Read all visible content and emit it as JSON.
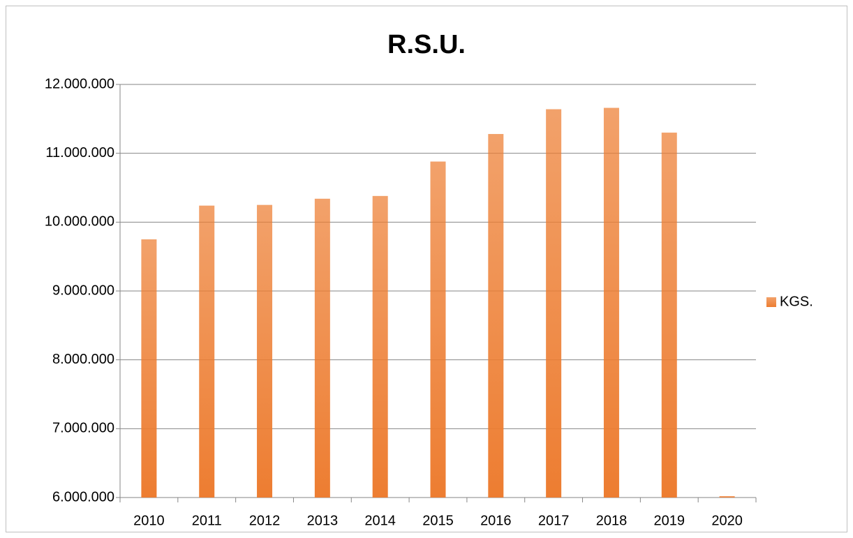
{
  "chart_data": {
    "type": "bar",
    "title": "R.S.U.",
    "categories": [
      "2010",
      "2011",
      "2012",
      "2013",
      "2014",
      "2015",
      "2016",
      "2017",
      "2018",
      "2019",
      "2020"
    ],
    "series": [
      {
        "name": "KGS.",
        "color": "#ed7d31",
        "values": [
          9750000,
          10240000,
          10250000,
          10340000,
          10380000,
          10880000,
          11280000,
          11640000,
          11660000,
          11300000,
          6020000
        ]
      }
    ],
    "ylim": [
      6000000,
      12000000
    ],
    "yticks": [
      {
        "value": 6000000,
        "label": "6.000.000"
      },
      {
        "value": 7000000,
        "label": "7.000.000"
      },
      {
        "value": 8000000,
        "label": "8.000.000"
      },
      {
        "value": 9000000,
        "label": "9.000.000"
      },
      {
        "value": 10000000,
        "label": "10.000.000"
      },
      {
        "value": 11000000,
        "label": "11.000.000"
      },
      {
        "value": 12000000,
        "label": "12.000.000"
      }
    ],
    "grid": true,
    "legend": "right"
  }
}
